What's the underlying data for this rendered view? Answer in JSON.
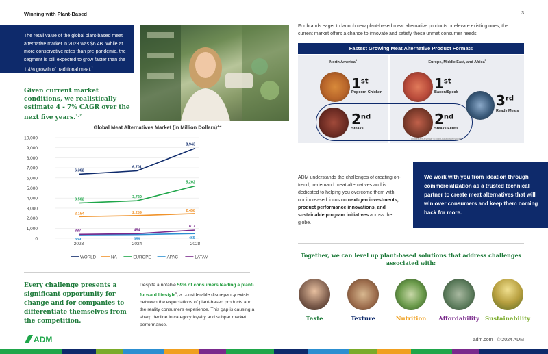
{
  "header": {
    "title": "Winning with Plant-Based",
    "page": "3"
  },
  "intro_box": {
    "text": "The retail value of the global plant-based meat alternative market in 2023 was $6.4B. While at more conservative rates than pre-pandemic, the segment is still expected to grow faster than the 1.4% growth of traditional meat.",
    "ref": "1"
  },
  "conditions": {
    "text": "Given current market conditions, we realistically estimate  4 - 7% CAGR over the next five years.",
    "ref": "1,2"
  },
  "chart_data": {
    "type": "line",
    "title": "Global Meat Alternatives Market (in Million Dollars)",
    "title_ref": "1,2",
    "categories": [
      "2023",
      "2024",
      "2028"
    ],
    "ylim": [
      0,
      10000
    ],
    "yticks": [
      "0",
      "1,000",
      "2,000",
      "3,000",
      "4,000",
      "5,000",
      "6,000",
      "7,000",
      "8,000",
      "9,000",
      "10,000"
    ],
    "series": [
      {
        "name": "WORLD",
        "color": "#0e2a6b",
        "values": [
          6362,
          6701,
          8943
        ],
        "labels": [
          "6,362",
          "6,701",
          "8,943"
        ]
      },
      {
        "name": "NA",
        "color": "#f0932b",
        "values": [
          2154,
          2259,
          2458
        ],
        "labels": [
          "2,154",
          "2,259",
          "2,458"
        ]
      },
      {
        "name": "EUROPE",
        "color": "#1fa64a",
        "values": [
          3502,
          3729,
          5202
        ],
        "labels": [
          "3,502",
          "3,729",
          "5,202"
        ]
      },
      {
        "name": "APAC",
        "color": "#2c8fd1",
        "values": [
          339,
          359,
          465
        ],
        "labels": [
          "339",
          "359",
          "465"
        ]
      },
      {
        "name": "LATAM",
        "color": "#7a2a8c",
        "values": [
          387,
          454,
          817
        ],
        "labels": [
          "387",
          "454",
          "817"
        ]
      }
    ],
    "legend_position": "bottom"
  },
  "right_intro": "For brands eager to launch new plant-based meat alternative products or elevate existing ones, the current market offers a chance to innovate and satisfy these unmet consumer needs.",
  "formats": {
    "banner": "Fastest Growing Meat Alternative Product Formats",
    "na_label": "North America",
    "na_ref": "4",
    "emea_label": "Europe, Middle East, and Africa",
    "emea_ref": "5",
    "items": [
      {
        "rank": "1",
        "suffix": "st",
        "label": "Popcorn Chicken"
      },
      {
        "rank": "2",
        "suffix": "nd",
        "label": "Steaks"
      },
      {
        "rank": "1",
        "suffix": "st",
        "label": "Bacon/Speck"
      },
      {
        "rank": "2",
        "suffix": "nd",
        "label": "Steaks/Fillets"
      },
      {
        "rank": "3",
        "suffix": "rd",
        "label": "Ready Meals"
      }
    ],
    "note": "Images are a similar to plant-based alternatives."
  },
  "adm_text": {
    "part1": "ADM understands the challenges of creating on-trend, in-demand meat alternatives and is dedicated to helping you overcome them with our increased focus on ",
    "bold": "next-gen investments, product performance innovations, and sustainable program initiatives",
    "part2": " across the globe."
  },
  "navy_right": "We work with you from ideation through commercialization as a trusted technical partner to create meat alternatives that will win over consumers and keep them coming back for more.",
  "together": "Together, we can level up plant-based solutions that address challenges associated with:",
  "challenges": [
    {
      "label": "Taste",
      "color": "#1e7a3a"
    },
    {
      "label": "Texture",
      "color": "#0e2a6b"
    },
    {
      "label": "Nutrition",
      "color": "#f0a020"
    },
    {
      "label": "Affordability",
      "color": "#7a2a8c"
    },
    {
      "label": "Sustainability",
      "color": "#7aab2a"
    }
  ],
  "every": "Every challenge presents a significant opportunity for change and for companies to differentiate themselves from the competition.",
  "despite": {
    "part1": "Despite a notable ",
    "highlight": "59% of consumers leading a plant-forward lifestyle",
    "ref": "6",
    "part2": ", a considerable discrepancy exists between the expectations of plant-based products and the reality consumers experience. This gap is causing a sharp decline in category loyalty and subpar market performance."
  },
  "footer": {
    "logo_text": "ADM",
    "url": "adm.com  |  © 2024 ADM"
  }
}
